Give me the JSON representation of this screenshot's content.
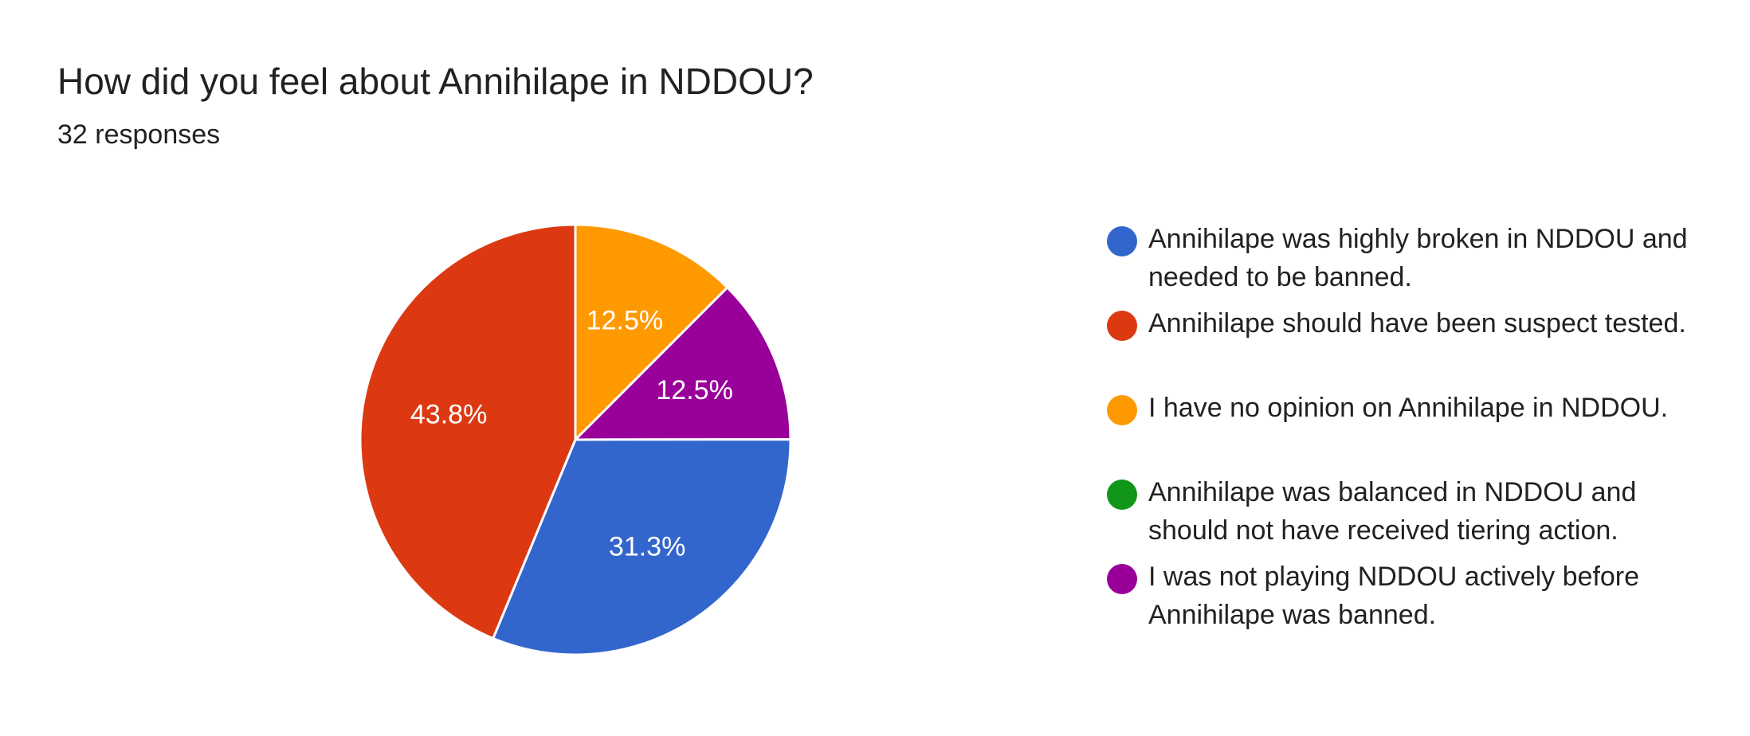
{
  "header": {
    "title": "How did you feel about Annihilape in NDDOU?",
    "responses": "32 responses"
  },
  "chart_data": {
    "type": "pie",
    "title": "How did you feel about Annihilape in NDDOU?",
    "subtitle": "32 responses",
    "slices": [
      {
        "label": "Annihilape was highly broken in NDDOU and needed to be banned.",
        "value": 31.3,
        "display": "31.3%",
        "color": "#3366cc"
      },
      {
        "label": "Annihilape should have been suspect tested.",
        "value": 43.8,
        "display": "43.8%",
        "color": "#dc3912"
      },
      {
        "label": "I have no opinion on Annihilape in NDDOU.",
        "value": 12.5,
        "display": "12.5%",
        "color": "#ff9900"
      },
      {
        "label": "Annihilape was balanced in NDDOU and should not have received tiering action.",
        "value": 0,
        "display": "",
        "color": "#109618"
      },
      {
        "label": "I was not playing NDDOU actively before Annihilape was banned.",
        "value": 12.5,
        "display": "12.5%",
        "color": "#990099"
      }
    ],
    "legend_position": "right"
  },
  "legend": {
    "items": [
      {
        "label": "Annihilape was highly broken in NDDOU and needed to be banned.",
        "color": "#3366cc"
      },
      {
        "label": "Annihilape should have been suspect tested.",
        "color": "#dc3912"
      },
      {
        "label": "I have no opinion on Annihilape in NDDOU.",
        "color": "#ff9900"
      },
      {
        "label": "Annihilape was balanced in NDDOU and should not have received tiering action.",
        "color": "#109618"
      },
      {
        "label": "I was not playing NDDOU actively before Annihilape was banned.",
        "color": "#990099"
      }
    ]
  }
}
